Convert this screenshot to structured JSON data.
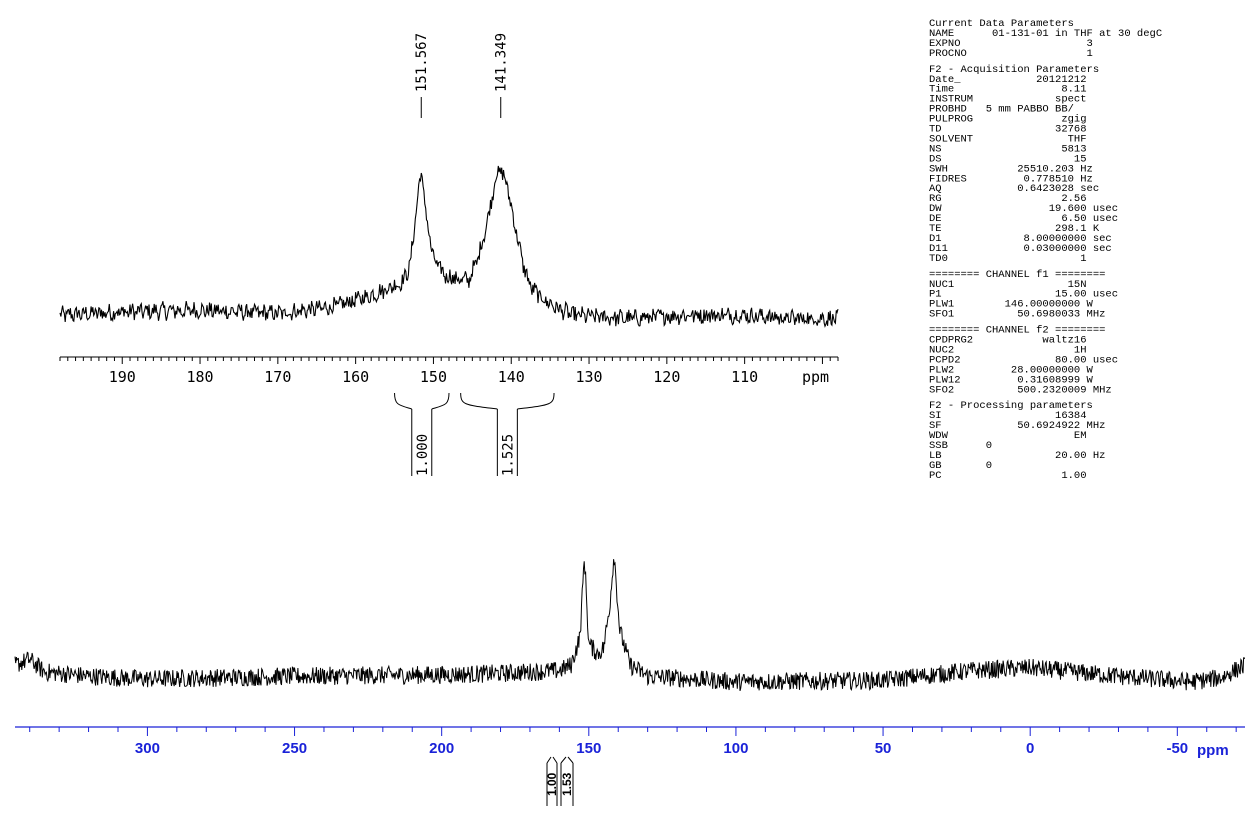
{
  "chart_data": [
    {
      "type": "line",
      "xlabel": "ppm",
      "xlim": [
        198,
        98
      ],
      "x_reversed": true,
      "ticks": [
        "190",
        "180",
        "170",
        "160",
        "150",
        "140",
        "130",
        "120",
        "110"
      ],
      "peaks": [
        {
          "ppm": 151.567,
          "label": "151.567"
        },
        {
          "ppm": 141.349,
          "label": "141.349"
        }
      ],
      "integrals": [
        {
          "from": 155.0,
          "to": 148.0,
          "value": "1.000"
        },
        {
          "from": 146.5,
          "to": 134.5,
          "value": "1.525"
        }
      ],
      "series": [
        {
          "points": [
            [
              198,
              0.12
            ],
            [
              190,
              0.14
            ],
            [
              180,
              0.15
            ],
            [
              170,
              0.13
            ],
            [
              163,
              0.17
            ],
            [
              158,
              0.24
            ],
            [
              156,
              0.28
            ],
            [
              154,
              0.32
            ],
            [
              153,
              0.42
            ],
            [
              152.3,
              0.72
            ],
            [
              151.6,
              1.0
            ],
            [
              150.8,
              0.68
            ],
            [
              150,
              0.46
            ],
            [
              148.5,
              0.36
            ],
            [
              147,
              0.34
            ],
            [
              145.5,
              0.33
            ],
            [
              144.3,
              0.46
            ],
            [
              143,
              0.7
            ],
            [
              142,
              0.96
            ],
            [
              141.35,
              1.0
            ],
            [
              140.6,
              0.92
            ],
            [
              139.5,
              0.66
            ],
            [
              138.5,
              0.43
            ],
            [
              137.5,
              0.29
            ],
            [
              136,
              0.22
            ],
            [
              134,
              0.16
            ],
            [
              132,
              0.12
            ],
            [
              125,
              0.1
            ],
            [
              118,
              0.12
            ],
            [
              110,
              0.12
            ],
            [
              104,
              0.1
            ],
            [
              98,
              0.1
            ]
          ]
        }
      ]
    },
    {
      "type": "line",
      "xlabel": "ppm",
      "xlim": [
        345,
        -73
      ],
      "x_reversed": true,
      "ticks": [
        "300",
        "250",
        "200",
        "150",
        "100",
        "50",
        "0",
        "-50"
      ],
      "integrals": [
        {
          "from": 152.5,
          "to": 148.0,
          "value": "1.00"
        },
        {
          "from": 146.0,
          "to": 137.5,
          "value": "1.53"
        }
      ],
      "series": [
        {
          "points": [
            [
              345,
              0.2
            ],
            [
              340,
              0.24
            ],
            [
              335,
              0.15
            ],
            [
              320,
              0.12
            ],
            [
              300,
              0.1
            ],
            [
              250,
              0.12
            ],
            [
              200,
              0.13
            ],
            [
              180,
              0.14
            ],
            [
              160,
              0.16
            ],
            [
              156,
              0.2
            ],
            [
              153,
              0.4
            ],
            [
              151.5,
              0.98
            ],
            [
              150,
              0.35
            ],
            [
              147,
              0.28
            ],
            [
              145,
              0.32
            ],
            [
              143,
              0.6
            ],
            [
              141.4,
              1.0
            ],
            [
              139.5,
              0.45
            ],
            [
              136,
              0.2
            ],
            [
              130,
              0.12
            ],
            [
              100,
              0.08
            ],
            [
              50,
              0.09
            ],
            [
              20,
              0.16
            ],
            [
              0,
              0.18
            ],
            [
              -30,
              0.12
            ],
            [
              -55,
              0.08
            ],
            [
              -65,
              0.11
            ],
            [
              -73,
              0.2
            ]
          ]
        }
      ]
    }
  ],
  "parameters": {
    "lines": [
      "Current Data Parameters",
      "NAME      01-131-01 in THF at 30 degC",
      "EXPNO                    3",
      "PROCNO                   1",
      "",
      "F2 - Acquisition Parameters",
      "Date_            20121212",
      "Time                 8.11",
      "INSTRUM             spect",
      "PROBHD   5 mm PABBO BB/",
      "PULPROG              zgig",
      "TD                  32768",
      "SOLVENT               THF",
      "NS                   5813",
      "DS                     15",
      "SWH           25510.203 Hz",
      "FIDRES         0.778510 Hz",
      "AQ            0.6423028 sec",
      "RG                   2.56",
      "DW                 19.600 usec",
      "DE                   6.50 usec",
      "TE                  298.1 K",
      "D1             8.00000000 sec",
      "D11            0.03000000 sec",
      "TD0                     1",
      "",
      "======== CHANNEL f1 ========",
      "NUC1                  15N",
      "P1                  15.00 usec",
      "PLW1        146.00000000 W",
      "SFO1          50.6980033 MHz",
      "",
      "======== CHANNEL f2 ========",
      "CPDPRG2           waltz16",
      "NUC2                   1H",
      "PCPD2               80.00 usec",
      "PLW2         28.00000000 W",
      "PLW12         0.31608999 W",
      "SFO2          500.2320009 MHz",
      "",
      "F2 - Processing parameters",
      "SI                  16384",
      "SF            50.6924922 MHz",
      "WDW                    EM",
      "SSB      0",
      "LB                  20.00 Hz",
      "GB       0",
      "PC                   1.00"
    ]
  },
  "colors": {
    "trace": "#000000",
    "bottom_axis": "#1a22d8"
  }
}
